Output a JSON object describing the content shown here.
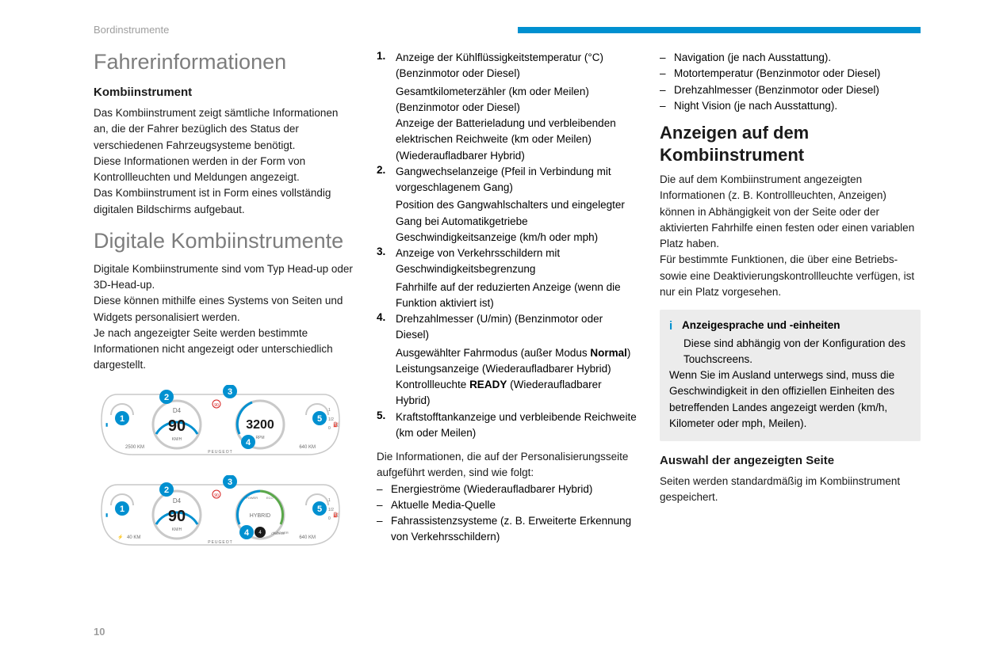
{
  "header": {
    "section_label": "Bordinstrumente"
  },
  "page_number": "10",
  "col1": {
    "title1": "Fahrerinformationen",
    "h2_kombi": "Kombiinstrument",
    "p1": "Das Kombiinstrument zeigt sämtliche Informationen an, die der Fahrer bezüglich des Status der verschiedenen Fahrzeugsysteme benötigt.",
    "p2": "Diese Informationen werden in der Form von Kontrollleuchten und Meldungen angezeigt.",
    "p3": "Das Kombiinstrument ist in Form eines vollständig digitalen Bildschirms aufgebaut.",
    "title2": "Digitale Kombiinstrumente",
    "p4": "Digitale Kombiinstrumente sind vom Typ Head-up oder 3D-Head-up.",
    "p5": "Diese können mithilfe eines Systems von Seiten und Widgets personalisiert werden.",
    "p6": "Je nach angezeigter Seite werden bestimmte Informationen nicht angezeigt oder unterschiedlich dargestellt."
  },
  "gauge": {
    "marker_color": "#0090d0",
    "accent_red": "#d62020",
    "ring_gray": "#c9c9c9",
    "text_gray": "#6d6d6d",
    "cluster1": {
      "speed_label": "D4",
      "speed_value": "90",
      "speed_unit": "KM/H",
      "odo": "2500 KM",
      "rpm_value": "3200",
      "rpm_unit": "RPM",
      "range": "640 KM",
      "brand": "PEUGEOT",
      "markers": [
        "1",
        "2",
        "3",
        "4",
        "5"
      ]
    },
    "cluster2": {
      "speed_label": "D4",
      "speed_value": "90",
      "speed_unit": "KM/H",
      "odo": "40 KM",
      "mode": "HYBRID",
      "arc_left": "POWER",
      "arc_right": "ECO",
      "arc_bottom": "CHARGE",
      "pct": "% POWER",
      "range": "640 KM",
      "brand": "PEUGEOT",
      "markers": [
        "1",
        "2",
        "3",
        "4",
        "5"
      ]
    }
  },
  "col2": {
    "items": [
      {
        "n": "1.",
        "lines": [
          "Anzeige der Kühlflüssigkeitstemperatur (°C) (Benzinmotor oder Diesel)",
          "Gesamtkilometerzähler (km oder Meilen) (Benzinmotor oder Diesel)",
          "Anzeige der Batterieladung und verbleibenden elektrischen Reichweite (km oder Meilen) (Wiederaufladbarer Hybrid)"
        ]
      },
      {
        "n": "2.",
        "lines": [
          "Gangwechselanzeige (Pfeil in Verbindung mit vorgeschlagenem Gang)",
          "Position des Gangwahlschalters und eingelegter Gang bei Automatikgetriebe",
          "Geschwindigkeitsanzeige (km/h oder mph)"
        ]
      },
      {
        "n": "3.",
        "lines": [
          "Anzeige von Verkehrsschildern mit Geschwindigkeitsbegrenzung",
          "Fahrhilfe auf der reduzierten Anzeige (wenn die Funktion aktiviert ist)"
        ]
      },
      {
        "n": "4.",
        "lines": [
          "Drehzahlmesser (U/min) (Benzinmotor oder Diesel)"
        ],
        "extra_html": true
      },
      {
        "n": "5.",
        "lines": [
          "Kraftstofftankanzeige und verbleibende Reichweite (km oder Meilen)"
        ]
      }
    ],
    "item4_extra": {
      "l1a": "Ausgewählter Fahrmodus (außer Modus ",
      "l1b": "Normal",
      "l1c": ")",
      "l2": "Leistungsanzeige (Wiederaufladbarer Hybrid)",
      "l3a": "Kontrollleuchte ",
      "l3b": "READY",
      "l3c": " (Wiederaufladbarer Hybrid)"
    },
    "para_after": "Die Informationen, die auf der Personalisierungsseite aufgeführt werden, sind wie folgt:",
    "dashes": [
      "Energieströme (Wiederaufladbarer Hybrid)",
      "Aktuelle Media-Quelle",
      "Fahrassistenzsysteme (z. B. Erweiterte Erkennung von Verkehrsschildern)"
    ]
  },
  "col3": {
    "top_dashes": [
      "Navigation (je nach Ausstattung).",
      "Motortemperatur (Benzinmotor oder Diesel)",
      "Drehzahlmesser (Benzinmotor oder Diesel)",
      "Night Vision (je nach Ausstattung)."
    ],
    "h2": "Anzeigen auf dem Kombiinstrument",
    "p1": "Die auf dem Kombiinstrument angezeigten Informationen (z. B. Kontrollleuchten, Anzeigen) können in Abhängigkeit von der Seite oder der aktivierten Fahrhilfe einen festen oder einen variablen Platz haben.",
    "p2": "Für bestimmte Funktionen, die über eine Betriebs- sowie eine Deaktivierungskontrollleuchte verfügen, ist nur ein Platz vorgesehen.",
    "info": {
      "head": "Anzeigesprache und -einheiten",
      "l1": "Diese sind abhängig von der Konfiguration des Touchscreens.",
      "l2": "Wenn Sie im Ausland unterwegs sind, muss die Geschwindigkeit in den offiziellen Einheiten des betreffenden Landes angezeigt werden (km/h, Kilometer oder mph, Meilen)."
    },
    "h3": "Auswahl der angezeigten Seite",
    "p3": "Seiten werden standardmäßig im Kombiinstrument gespeichert."
  }
}
